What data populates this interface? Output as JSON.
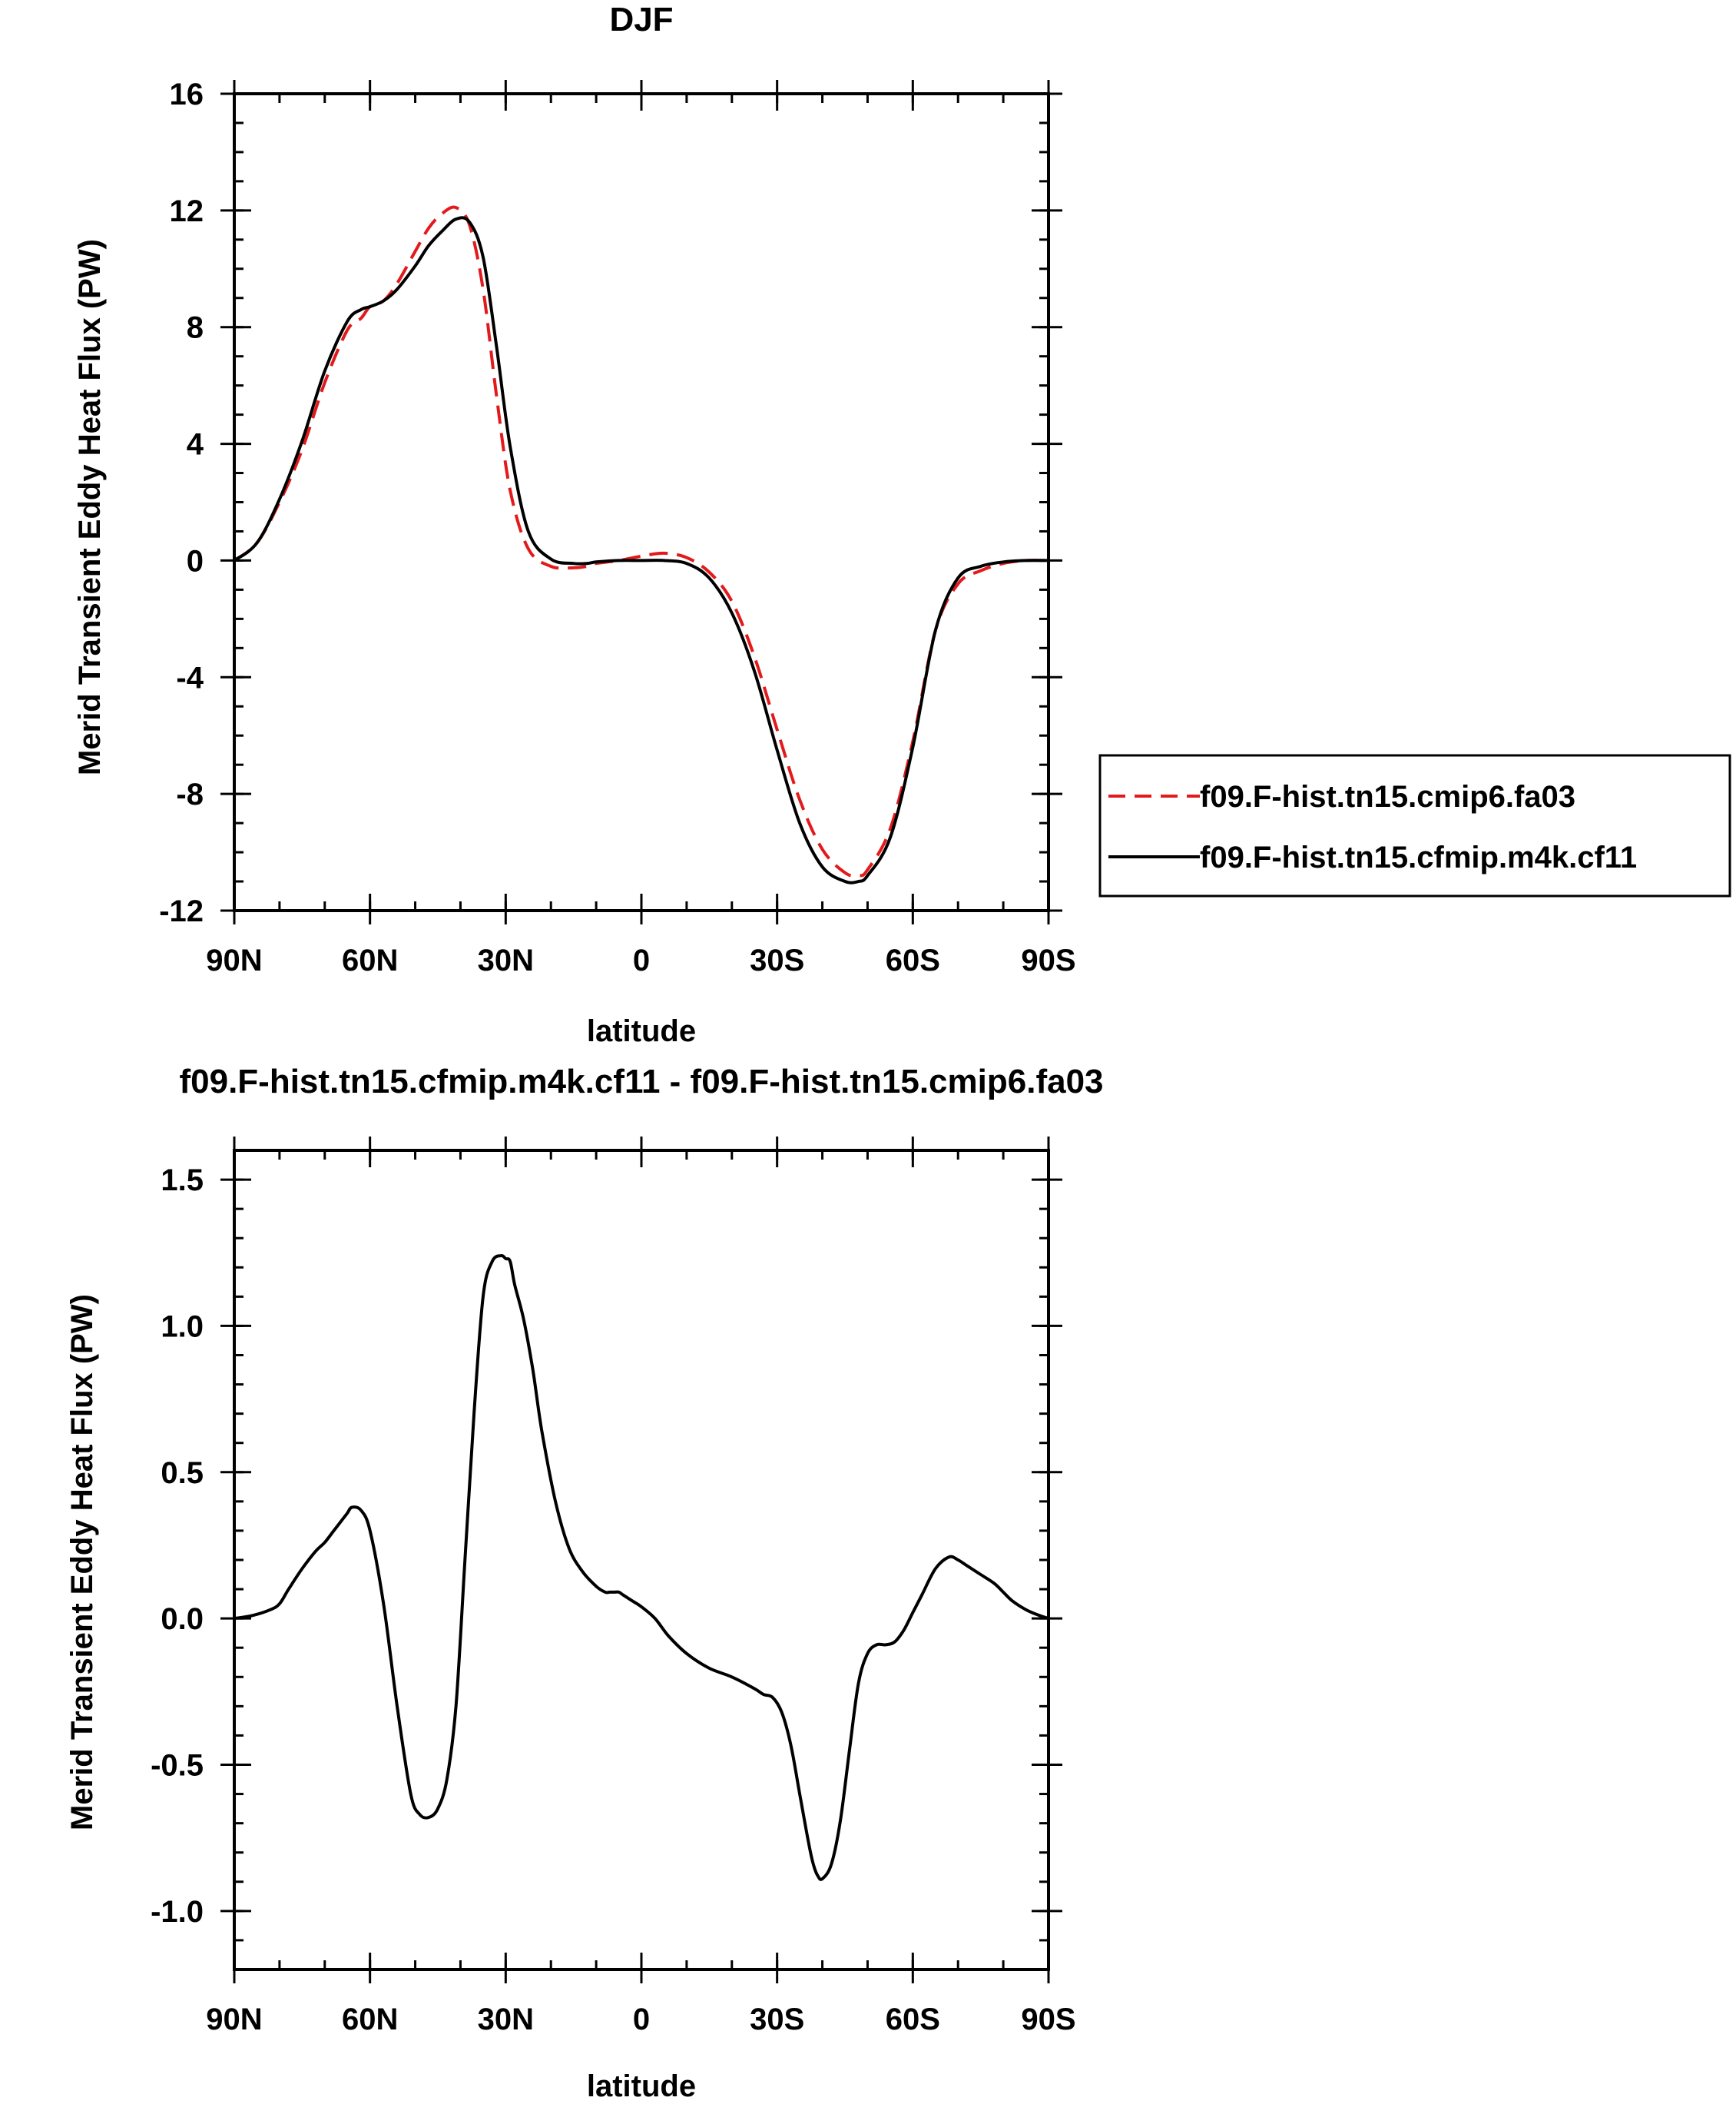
{
  "chart_data": [
    {
      "type": "line",
      "title": "DJF",
      "xlabel": "latitude",
      "ylabel": "Merid Transient Eddy Heat Flux (PW)",
      "xlim": [
        90,
        -90
      ],
      "ylim": [
        -12,
        16
      ],
      "xticks": [
        {
          "value": 90,
          "label": "90N"
        },
        {
          "value": 60,
          "label": "60N"
        },
        {
          "value": 30,
          "label": "30N"
        },
        {
          "value": 0,
          "label": "0"
        },
        {
          "value": -30,
          "label": "30S"
        },
        {
          "value": -60,
          "label": "60S"
        },
        {
          "value": -90,
          "label": "90S"
        }
      ],
      "yticks": [
        {
          "value": 16,
          "label": "16"
        },
        {
          "value": 12,
          "label": "12"
        },
        {
          "value": 8,
          "label": "8"
        },
        {
          "value": 4,
          "label": "4"
        },
        {
          "value": 0,
          "label": "0"
        },
        {
          "value": -4,
          "label": "-4"
        },
        {
          "value": -8,
          "label": "-8"
        },
        {
          "value": -12,
          "label": "-12"
        }
      ],
      "legend": "outside-right",
      "series": [
        {
          "name": "f09.F-hist.tn15.cmip6.fa03",
          "color": "#e31a1c",
          "dash": "dashed",
          "x": [
            90,
            85,
            80,
            75,
            70,
            65,
            62,
            60,
            57,
            54,
            50,
            47,
            44,
            41,
            38,
            35,
            32,
            29,
            25,
            20,
            15,
            12,
            10,
            5,
            0,
            -5,
            -10,
            -15,
            -20,
            -25,
            -30,
            -35,
            -40,
            -45,
            -48,
            -50,
            -55,
            -60,
            -65,
            -70,
            -75,
            -80,
            -85,
            -90
          ],
          "y": [
            0,
            0.6,
            2.0,
            3.8,
            6.1,
            7.9,
            8.3,
            8.7,
            8.9,
            9.5,
            10.6,
            11.4,
            11.9,
            12.1,
            11.5,
            9.3,
            5.6,
            2.4,
            0.4,
            -0.2,
            -0.25,
            -0.2,
            -0.1,
            0,
            0.15,
            0.25,
            0.1,
            -0.4,
            -1.4,
            -3.3,
            -5.8,
            -8.2,
            -9.9,
            -10.7,
            -10.8,
            -10.6,
            -9.2,
            -6.2,
            -2.4,
            -0.8,
            -0.35,
            -0.1,
            0,
            0
          ]
        },
        {
          "name": "f09.F-hist.tn15.cfmip.m4k.cf11",
          "color": "#000000",
          "dash": "solid",
          "x": [
            90,
            85,
            80,
            75,
            70,
            65,
            62,
            60,
            57,
            54,
            50,
            47,
            44,
            41,
            38,
            35,
            32,
            29,
            25,
            20,
            15,
            12,
            10,
            5,
            0,
            -5,
            -10,
            -15,
            -20,
            -25,
            -30,
            -35,
            -40,
            -45,
            -48,
            -50,
            -55,
            -60,
            -65,
            -70,
            -75,
            -80,
            -85,
            -90
          ],
          "y": [
            0,
            0.6,
            2.1,
            4.1,
            6.5,
            8.2,
            8.6,
            8.7,
            8.9,
            9.3,
            10.1,
            10.8,
            11.3,
            11.7,
            11.6,
            10.4,
            7.3,
            3.9,
            1.0,
            0.05,
            -0.1,
            -0.1,
            -0.05,
            0,
            0,
            0,
            -0.1,
            -0.6,
            -1.8,
            -3.8,
            -6.5,
            -9.0,
            -10.5,
            -11.0,
            -11.0,
            -10.8,
            -9.5,
            -6.4,
            -2.4,
            -0.6,
            -0.2,
            -0.05,
            0,
            0
          ]
        }
      ]
    },
    {
      "type": "line",
      "title": "f09.F-hist.tn15.cfmip.m4k.cf11 - f09.F-hist.tn15.cmip6.fa03",
      "xlabel": "latitude",
      "ylabel": "Merid Transient Eddy Heat Flux (PW)",
      "xlim": [
        90,
        -90
      ],
      "ylim": [
        -1.2,
        1.6
      ],
      "xticks": [
        {
          "value": 90,
          "label": "90N"
        },
        {
          "value": 60,
          "label": "60N"
        },
        {
          "value": 30,
          "label": "30N"
        },
        {
          "value": 0,
          "label": "0"
        },
        {
          "value": -30,
          "label": "30S"
        },
        {
          "value": -60,
          "label": "60S"
        },
        {
          "value": -90,
          "label": "90S"
        }
      ],
      "yticks": [
        {
          "value": 1.5,
          "label": "1.5"
        },
        {
          "value": 1.0,
          "label": "1.0"
        },
        {
          "value": 0.5,
          "label": "0.5"
        },
        {
          "value": 0.0,
          "label": "0.0"
        },
        {
          "value": -0.5,
          "label": "-0.5"
        },
        {
          "value": -1.0,
          "label": "-1.0"
        }
      ],
      "series": [
        {
          "color": "#000000",
          "dash": "solid",
          "x": [
            90,
            86,
            82,
            80,
            78,
            75,
            72,
            70,
            68,
            66,
            65,
            64,
            62,
            60,
            57,
            54,
            51,
            49,
            47,
            45,
            43,
            41,
            39,
            37,
            35,
            33,
            31,
            30,
            29,
            28,
            26,
            24,
            22,
            19,
            16,
            13,
            10,
            8,
            7,
            6,
            5,
            4,
            2,
            0,
            -3,
            -6,
            -10,
            -15,
            -20,
            -25,
            -27,
            -29,
            -31,
            -33,
            -35,
            -37,
            -38,
            -39,
            -40,
            -42,
            -44,
            -46,
            -48,
            -50,
            -52,
            -54,
            -56,
            -58,
            -60,
            -62,
            -65,
            -68,
            -70,
            -72,
            -75,
            -78,
            -80,
            -82,
            -85,
            -88,
            -90
          ],
          "y": [
            0,
            0.01,
            0.03,
            0.05,
            0.1,
            0.17,
            0.23,
            0.26,
            0.3,
            0.34,
            0.36,
            0.38,
            0.37,
            0.3,
            0.05,
            -0.3,
            -0.6,
            -0.67,
            -0.68,
            -0.65,
            -0.55,
            -0.3,
            0.2,
            0.7,
            1.1,
            1.22,
            1.24,
            1.23,
            1.22,
            1.14,
            1.02,
            0.85,
            0.64,
            0.4,
            0.24,
            0.16,
            0.11,
            0.09,
            0.09,
            0.09,
            0.09,
            0.08,
            0.06,
            0.04,
            0,
            -0.06,
            -0.12,
            -0.17,
            -0.2,
            -0.24,
            -0.26,
            -0.27,
            -0.32,
            -0.43,
            -0.6,
            -0.77,
            -0.84,
            -0.88,
            -0.89,
            -0.84,
            -0.69,
            -0.45,
            -0.22,
            -0.12,
            -0.09,
            -0.09,
            -0.08,
            -0.04,
            0.02,
            0.08,
            0.17,
            0.21,
            0.2,
            0.18,
            0.15,
            0.12,
            0.09,
            0.06,
            0.03,
            0.01,
            0
          ]
        }
      ]
    }
  ]
}
